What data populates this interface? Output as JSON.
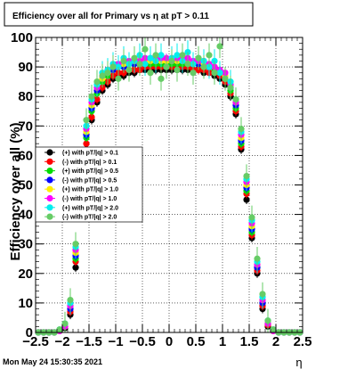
{
  "chart_data": {
    "type": "scatter",
    "title": "Efficiency over all for Primary vs   η at pT > 0.11",
    "xlabel": "η",
    "ylabel": "Efficiency over all (%)",
    "xlim": [
      -2.5,
      2.5
    ],
    "ylim": [
      0,
      100
    ],
    "x_ticks": [
      -2.5,
      -2,
      -1.5,
      -1,
      -0.5,
      0,
      0.5,
      1,
      1.5,
      2,
      2.5
    ],
    "x_tick_labels": [
      "−2.5",
      "−2",
      "−1.5",
      "−1",
      "−0.5",
      "0",
      "0.5",
      "1",
      "1.5",
      "2",
      "2.5"
    ],
    "y_ticks": [
      0,
      10,
      20,
      30,
      40,
      50,
      60,
      70,
      80,
      90,
      100
    ],
    "y_tick_labels": [
      "0",
      "10",
      "20",
      "30",
      "40",
      "50",
      "60",
      "70",
      "80",
      "90",
      "100"
    ],
    "grid": true,
    "legend_position": "center-left",
    "series": [
      {
        "name": "(+) with pT/|q| > 0.1",
        "color": "#000000",
        "x": [
          -2.45,
          -2.35,
          -2.25,
          -2.15,
          -2.05,
          -1.95,
          -1.85,
          -1.75,
          -1.65,
          -1.55,
          -1.45,
          -1.35,
          -1.25,
          -1.15,
          -1.05,
          -0.95,
          -0.85,
          -0.75,
          -0.65,
          -0.55,
          -0.45,
          -0.35,
          -0.25,
          -0.15,
          -0.05,
          0.05,
          0.15,
          0.25,
          0.35,
          0.45,
          0.55,
          0.65,
          0.75,
          0.85,
          0.95,
          1.05,
          1.15,
          1.25,
          1.35,
          1.45,
          1.55,
          1.65,
          1.75,
          1.85,
          1.95,
          2.05,
          2.15,
          2.25,
          2.35,
          2.45
        ],
        "y": [
          0,
          0,
          0,
          0,
          0.5,
          1.5,
          6,
          22,
          45,
          62,
          72,
          78,
          82,
          84,
          86,
          87,
          87,
          88,
          88,
          89,
          89,
          89,
          89,
          89,
          89,
          89,
          89,
          89,
          89,
          89,
          89,
          88,
          88,
          87,
          86,
          84,
          80,
          74,
          62,
          45,
          32,
          20,
          8,
          2,
          0.5,
          0,
          0,
          0,
          0,
          0
        ]
      },
      {
        "name": "(-) with pT/|q| > 0.1",
        "color": "#ff0000",
        "x": [
          -2.45,
          -2.35,
          -2.25,
          -2.15,
          -2.05,
          -1.95,
          -1.85,
          -1.75,
          -1.65,
          -1.55,
          -1.45,
          -1.35,
          -1.25,
          -1.15,
          -1.05,
          -0.95,
          -0.85,
          -0.75,
          -0.65,
          -0.55,
          -0.45,
          -0.35,
          -0.25,
          -0.15,
          -0.05,
          0.05,
          0.15,
          0.25,
          0.35,
          0.45,
          0.55,
          0.65,
          0.75,
          0.85,
          0.95,
          1.05,
          1.15,
          1.25,
          1.35,
          1.45,
          1.55,
          1.65,
          1.75,
          1.85,
          1.95,
          2.05,
          2.15,
          2.25,
          2.35,
          2.45
        ],
        "y": [
          0,
          0,
          0,
          0,
          0.5,
          2,
          7,
          24,
          47,
          64,
          73,
          79,
          83,
          85,
          87,
          88,
          88,
          89,
          89,
          89,
          90,
          90,
          90,
          90,
          90,
          90,
          90,
          90,
          90,
          89,
          89,
          89,
          88,
          88,
          87,
          85,
          81,
          75,
          63,
          47,
          33,
          21,
          9,
          2.5,
          0.5,
          0,
          0,
          0,
          0,
          0
        ]
      },
      {
        "name": "(+) with pT/|q| > 0.5",
        "color": "#00dd00",
        "x": [
          -2.45,
          -2.35,
          -2.25,
          -2.15,
          -2.05,
          -1.95,
          -1.85,
          -1.75,
          -1.65,
          -1.55,
          -1.45,
          -1.35,
          -1.25,
          -1.15,
          -1.05,
          -0.95,
          -0.85,
          -0.75,
          -0.65,
          -0.55,
          -0.45,
          -0.35,
          -0.25,
          -0.15,
          -0.05,
          0.05,
          0.15,
          0.25,
          0.35,
          0.45,
          0.55,
          0.65,
          0.75,
          0.85,
          0.95,
          1.05,
          1.15,
          1.25,
          1.35,
          1.45,
          1.55,
          1.65,
          1.75,
          1.85,
          1.95,
          2.05,
          2.15,
          2.25,
          2.35,
          2.45
        ],
        "y": [
          0,
          0,
          0,
          0,
          0.5,
          2,
          8,
          25,
          49,
          66,
          75,
          81,
          85,
          87,
          89,
          90,
          90,
          91,
          91,
          91,
          91,
          91,
          91,
          91,
          91,
          91,
          91,
          91,
          91,
          91,
          91,
          90,
          90,
          89,
          88,
          86,
          82,
          76,
          64,
          48,
          34,
          22,
          10,
          3,
          0.5,
          0,
          0,
          0,
          0,
          0
        ]
      },
      {
        "name": "(-) with pT/|q| > 0.5",
        "color": "#0000ff",
        "x": [
          -2.45,
          -2.35,
          -2.25,
          -2.15,
          -2.05,
          -1.95,
          -1.85,
          -1.75,
          -1.65,
          -1.55,
          -1.45,
          -1.35,
          -1.25,
          -1.15,
          -1.05,
          -0.95,
          -0.85,
          -0.75,
          -0.65,
          -0.55,
          -0.45,
          -0.35,
          -0.25,
          -0.15,
          -0.05,
          0.05,
          0.15,
          0.25,
          0.35,
          0.45,
          0.55,
          0.65,
          0.75,
          0.85,
          0.95,
          1.05,
          1.15,
          1.25,
          1.35,
          1.45,
          1.55,
          1.65,
          1.75,
          1.85,
          1.95,
          2.05,
          2.15,
          2.25,
          2.35,
          2.45
        ],
        "y": [
          0,
          0,
          0,
          0,
          0.5,
          2,
          8,
          26,
          50,
          67,
          76,
          82,
          86,
          88,
          89,
          90,
          90,
          91,
          91,
          91,
          92,
          92,
          92,
          92,
          92,
          92,
          92,
          92,
          92,
          91,
          91,
          91,
          90,
          90,
          89,
          87,
          83,
          77,
          65,
          49,
          35,
          22,
          10,
          3,
          0.5,
          0,
          0,
          0,
          0,
          0
        ]
      },
      {
        "name": "(+) with pT/|q| > 1.0",
        "color": "#ffee00",
        "x": [
          -2.45,
          -2.35,
          -2.25,
          -2.15,
          -2.05,
          -1.95,
          -1.85,
          -1.75,
          -1.65,
          -1.55,
          -1.45,
          -1.35,
          -1.25,
          -1.15,
          -1.05,
          -0.95,
          -0.85,
          -0.75,
          -0.65,
          -0.55,
          -0.45,
          -0.35,
          -0.25,
          -0.15,
          -0.05,
          0.05,
          0.15,
          0.25,
          0.35,
          0.45,
          0.55,
          0.65,
          0.75,
          0.85,
          0.95,
          1.05,
          1.15,
          1.25,
          1.35,
          1.45,
          1.55,
          1.65,
          1.75,
          1.85,
          1.95,
          2.05,
          2.15,
          2.25,
          2.35,
          2.45
        ],
        "y": [
          0,
          0,
          0,
          0,
          0.5,
          2,
          9,
          27,
          51,
          68,
          77,
          83,
          86,
          88,
          90,
          91,
          91,
          91,
          92,
          92,
          92,
          92,
          92,
          92,
          92,
          92,
          92,
          92,
          92,
          92,
          92,
          91,
          91,
          90,
          89,
          87,
          84,
          78,
          66,
          50,
          36,
          23,
          11,
          3,
          0.5,
          0,
          0,
          0,
          0,
          0
        ]
      },
      {
        "name": "(-) with pT/|q| > 1.0",
        "color": "#ff00ff",
        "x": [
          -2.45,
          -2.35,
          -2.25,
          -2.15,
          -2.05,
          -1.95,
          -1.85,
          -1.75,
          -1.65,
          -1.55,
          -1.45,
          -1.35,
          -1.25,
          -1.15,
          -1.05,
          -0.95,
          -0.85,
          -0.75,
          -0.65,
          -0.55,
          -0.45,
          -0.35,
          -0.25,
          -0.15,
          -0.05,
          0.05,
          0.15,
          0.25,
          0.35,
          0.45,
          0.55,
          0.65,
          0.75,
          0.85,
          0.95,
          1.05,
          1.15,
          1.25,
          1.35,
          1.45,
          1.55,
          1.65,
          1.75,
          1.85,
          1.95,
          2.05,
          2.15,
          2.25,
          2.35,
          2.45
        ],
        "y": [
          0,
          0,
          0,
          0,
          0.5,
          2,
          9,
          28,
          52,
          69,
          78,
          83,
          87,
          89,
          90,
          91,
          92,
          92,
          92,
          92,
          93,
          93,
          93,
          93,
          93,
          93,
          93,
          93,
          93,
          92,
          92,
          92,
          91,
          90,
          89,
          88,
          84,
          78,
          67,
          51,
          37,
          23,
          11,
          3,
          0.5,
          0,
          0,
          0,
          0,
          0
        ]
      },
      {
        "name": "(+) with pT/|q| > 2.0",
        "color": "#00eeee",
        "x": [
          -2.45,
          -2.35,
          -2.25,
          -2.15,
          -2.05,
          -1.95,
          -1.85,
          -1.75,
          -1.65,
          -1.55,
          -1.45,
          -1.35,
          -1.25,
          -1.15,
          -1.05,
          -0.95,
          -0.85,
          -0.75,
          -0.65,
          -0.55,
          -0.45,
          -0.35,
          -0.25,
          -0.15,
          -0.05,
          0.05,
          0.15,
          0.25,
          0.35,
          0.45,
          0.55,
          0.65,
          0.75,
          0.85,
          0.95,
          1.05,
          1.15,
          1.25,
          1.35,
          1.45,
          1.55,
          1.65,
          1.75,
          1.85,
          1.95,
          2.05,
          2.15,
          2.25,
          2.35,
          2.45
        ],
        "y": [
          0,
          0,
          0,
          0,
          1,
          3,
          10,
          29,
          54,
          70,
          79,
          84,
          88,
          89,
          91,
          90,
          93,
          91,
          92,
          94,
          91,
          93,
          92,
          94,
          90,
          93,
          94,
          92,
          95,
          91,
          93,
          92,
          90,
          92,
          88,
          86,
          85,
          79,
          68,
          52,
          38,
          24,
          12,
          4,
          1,
          0,
          0,
          0,
          0,
          0
        ]
      },
      {
        "name": "(-) with pT/|q| > 2.0",
        "color": "#66cc66",
        "x": [
          -2.45,
          -2.35,
          -2.25,
          -2.15,
          -2.05,
          -1.95,
          -1.85,
          -1.75,
          -1.65,
          -1.55,
          -1.45,
          -1.35,
          -1.25,
          -1.15,
          -1.05,
          -0.95,
          -0.85,
          -0.75,
          -0.65,
          -0.55,
          -0.45,
          -0.35,
          -0.25,
          -0.15,
          -0.05,
          0.05,
          0.15,
          0.25,
          0.35,
          0.45,
          0.55,
          0.65,
          0.75,
          0.85,
          0.95,
          1.05,
          1.15,
          1.25,
          1.35,
          1.45,
          1.55,
          1.65,
          1.75,
          1.85,
          1.95,
          2.05,
          2.15,
          2.25,
          2.35,
          2.45
        ],
        "y": [
          0,
          0,
          0,
          0,
          1,
          3,
          11,
          30,
          55,
          72,
          80,
          85,
          87,
          88,
          90,
          86,
          92,
          89,
          93,
          91,
          96,
          88,
          94,
          86,
          90,
          92,
          89,
          94,
          91,
          88,
          93,
          90,
          94,
          88,
          97,
          86,
          83,
          79,
          69,
          53,
          39,
          25,
          13,
          4,
          1,
          0,
          0,
          0,
          0,
          0
        ]
      }
    ]
  },
  "footer": {
    "timestamp": "Mon May 24 15:30:35 2021"
  }
}
